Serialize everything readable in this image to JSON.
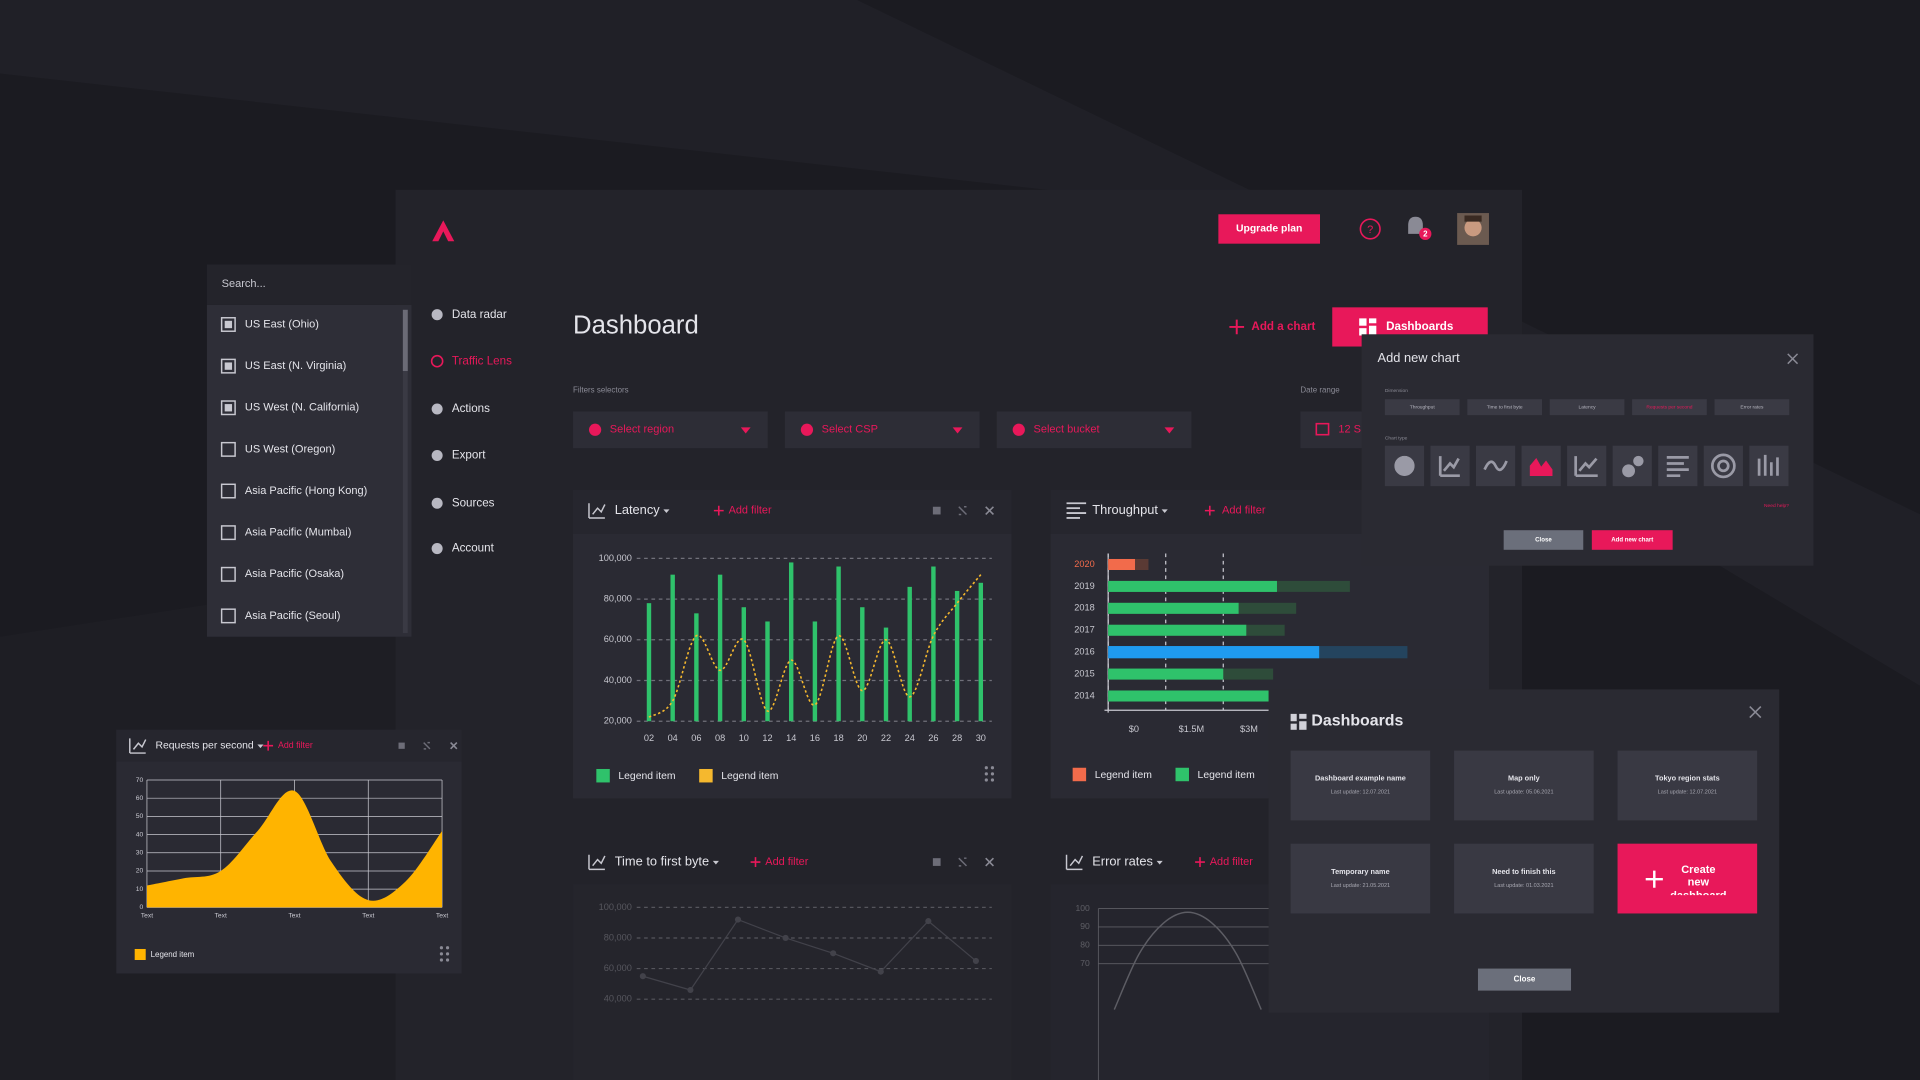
{
  "header": {
    "upgrade_button": "Upgrade plan",
    "notification_count": "2"
  },
  "sidebar": {
    "items": [
      "Data radar",
      "Traffic Lens",
      "Actions",
      "Export",
      "Sources",
      "Account"
    ],
    "active_index": 1
  },
  "region_dropdown": {
    "search_placeholder": "Search...",
    "items": [
      {
        "label": "US East (Ohio)",
        "checked": true
      },
      {
        "label": "US East (N. Virginia)",
        "checked": true
      },
      {
        "label": "US West (N. California)",
        "checked": true
      },
      {
        "label": "US West (Oregon)",
        "checked": false
      },
      {
        "label": "Asia Pacific (Hong Kong)",
        "checked": false
      },
      {
        "label": "Asia Pacific (Mumbai)",
        "checked": false
      },
      {
        "label": "Asia Pacific (Osaka)",
        "checked": false
      },
      {
        "label": "Asia Pacific (Seoul)",
        "checked": false
      }
    ]
  },
  "dashboard": {
    "title": "Dashboard",
    "add_chart": "Add a chart",
    "dashboards_button": "Dashboards",
    "filters_label": "Filters selectors",
    "date_range_label": "Date range",
    "filters": [
      "Select region",
      "Select CSP",
      "Select bucket"
    ],
    "date_value": "12 S"
  },
  "chart_data": [
    {
      "type": "combo",
      "title": "Latency",
      "action": "Add filter",
      "categories": [
        "02",
        "04",
        "06",
        "08",
        "10",
        "12",
        "14",
        "16",
        "18",
        "20",
        "22",
        "24",
        "26",
        "28",
        "30"
      ],
      "series": [
        {
          "name": "Legend item",
          "color": "#2fc26b",
          "kind": "bar",
          "values": [
            78000,
            92000,
            73000,
            92000,
            76000,
            69000,
            98000,
            69000,
            96000,
            76000,
            66000,
            86000,
            96000,
            84000,
            88000
          ]
        },
        {
          "name": "Legend item",
          "color": "#f5b82e",
          "kind": "line",
          "values": [
            22000,
            30000,
            62000,
            45000,
            60000,
            25000,
            50000,
            28000,
            62000,
            35000,
            60000,
            32000,
            62000,
            78000,
            92000
          ]
        }
      ],
      "ylim": [
        20000,
        100000
      ],
      "yticks": [
        {
          "value": 20000,
          "label": "20,000"
        },
        {
          "value": 40000,
          "label": "40,000"
        },
        {
          "value": 60000,
          "label": "60,000"
        },
        {
          "value": 80000,
          "label": "80,000"
        },
        {
          "value": 100000,
          "label": "100,000"
        }
      ],
      "grid": true
    },
    {
      "type": "hbar",
      "title": "Throughput",
      "action": "Add filter",
      "categories": [
        "2020",
        "2019",
        "2018",
        "2017",
        "2016",
        "2015",
        "2014"
      ],
      "highlight_index": 0,
      "series": [
        {
          "values": [
            1050000,
            6300000,
            4900000,
            4600000,
            7800000,
            4300000,
            4400000
          ],
          "colors": [
            "#5a3a34",
            "#2e4c3a",
            "#2e4c3a",
            "#2e4c3a",
            "#24445e",
            "#2e4c3a",
            "#2e4c3a"
          ]
        },
        {
          "values": [
            700000,
            4400000,
            3400000,
            3600000,
            5500000,
            3000000,
            4200000
          ],
          "colors": [
            "#f26b4b",
            "#2fc26b",
            "#2fc26b",
            "#2fc26b",
            "#1f9bf0",
            "#2fc26b",
            "#2fc26b"
          ]
        }
      ],
      "legend": [
        {
          "name": "Legend item",
          "color": "#f26b4b"
        },
        {
          "name": "Legend item",
          "color": "#2fc26b"
        }
      ],
      "xlim": [
        0,
        9000000
      ],
      "xticks": [
        {
          "value": 0,
          "label": "$0"
        },
        {
          "value": 1500000,
          "label": "$1.5M"
        },
        {
          "value": 3000000,
          "label": "$3M"
        }
      ],
      "grid": true
    },
    {
      "type": "area",
      "title": "Requests per second",
      "action": "Add filter",
      "categories": [
        "Text",
        null,
        "Text",
        null,
        "Text",
        null,
        "Text",
        null,
        "Text"
      ],
      "series": [
        {
          "name": "Legend item",
          "color": "#ffb400",
          "values": [
            12,
            16,
            20,
            42,
            64,
            25,
            4,
            14,
            42
          ]
        }
      ],
      "ylim": [
        0,
        70
      ],
      "yticks": [
        0,
        10,
        20,
        30,
        40,
        50,
        60,
        70
      ],
      "grid": true
    },
    {
      "type": "line",
      "title": "Time to first byte",
      "action": "Add filter",
      "series": [
        {
          "color": "#8a8a95",
          "values": [
            55000,
            46000,
            92000,
            80000,
            70000,
            58000,
            91000,
            65000
          ]
        }
      ],
      "ylim": [
        40000,
        100000
      ],
      "yticks": [
        {
          "value": 40000,
          "label": "40,000"
        },
        {
          "value": 60000,
          "label": "60,000"
        },
        {
          "value": 80000,
          "label": "80,000"
        },
        {
          "value": 100000,
          "label": "100,000"
        }
      ],
      "grid": true
    },
    {
      "type": "curve",
      "title": "Error rates",
      "action": "Add filter",
      "series": [
        {
          "color": "#c8c8d0",
          "values": [
            45,
            75,
            92,
            98,
            92,
            75,
            45
          ]
        }
      ],
      "ylim": [
        40,
        100
      ],
      "yticks": [
        70,
        80,
        90,
        100
      ],
      "grid": true
    }
  ],
  "add_chart_dialog": {
    "title": "Add new chart",
    "dimension_label": "Dimension",
    "dimensions": [
      "Throughput",
      "Time to first byte",
      "Latency",
      "Requests per second",
      "Error rates"
    ],
    "active_dimension": 3,
    "chart_type_label": "Chart type",
    "active_chart_type": 3,
    "help_link": "Need help?",
    "close_button": "Close",
    "submit_button": "Add new chart"
  },
  "dashboards_dialog": {
    "title": "Dashboards",
    "cards": [
      {
        "name": "Dashboard example name",
        "updated": "Last update: 12.07.2021"
      },
      {
        "name": "Map only",
        "updated": "Last update: 05.06.2021"
      },
      {
        "name": "Tokyo region stats",
        "updated": "Last update: 12.07.2021"
      },
      {
        "name": "Temporary name",
        "updated": "Last update: 21.05.2021"
      },
      {
        "name": "Need to finish this",
        "updated": "Last update: 01.03.2021"
      }
    ],
    "create_button": "Create new dashboard",
    "close_button": "Close"
  }
}
